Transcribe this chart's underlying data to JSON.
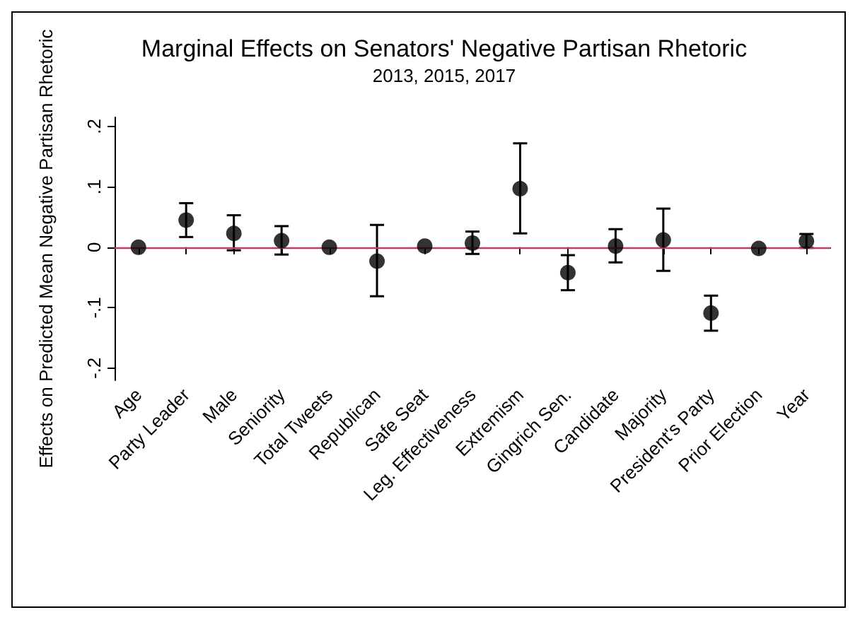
{
  "chart_data": {
    "type": "scatter",
    "title": "Marginal Effects on Senators' Negative Partisan Rhetoric",
    "subtitle": "2013, 2015, 2017",
    "ylabel": "Effects on Predicted Mean Negative Partisan Rhetoric",
    "categories": [
      "Age",
      "Party Leader",
      "Male",
      "Seniority",
      "Total Tweets",
      "Republican",
      "Safe Seat",
      "Leg. Effectiveness",
      "Extremism",
      "Gingrich Sen.",
      "Candidate",
      "Majority",
      "President's Party",
      "Prior Election",
      "Year"
    ],
    "series": [
      {
        "color": "#000000",
        "values": [
          0,
          0.045,
          0.023,
          0.011,
          0,
          -0.023,
          0.002,
          0.007,
          0.097,
          -0.042,
          0.002,
          0.012,
          -0.109,
          -0.002,
          0.01
        ],
        "errors": [
          null,
          [
            0.017,
            0.073
          ],
          [
            -0.005,
            0.053
          ],
          [
            -0.012,
            0.035
          ],
          null,
          [
            -0.081,
            0.037
          ],
          null,
          [
            -0.011,
            0.026
          ],
          [
            0.023,
            0.172
          ],
          [
            -0.071,
            -0.013
          ],
          [
            -0.025,
            0.03
          ],
          [
            -0.039,
            0.064
          ],
          [
            -0.138,
            -0.08
          ],
          null,
          [
            -0.001,
            0.022
          ]
        ]
      }
    ],
    "ylim": [
      -0.22,
      0.215
    ],
    "yticks": [
      {
        "value": -0.2,
        "label": "-.2"
      },
      {
        "value": -0.1,
        "label": "-.1"
      },
      0,
      {
        "value": 0.1,
        "label": ".1"
      },
      {
        "value": 0.2,
        "label": ".2"
      }
    ],
    "ref_lines": [
      {
        "axis": "y",
        "value": 0,
        "color": "#b8405e"
      }
    ],
    "marker": "circle",
    "grid": false
  }
}
